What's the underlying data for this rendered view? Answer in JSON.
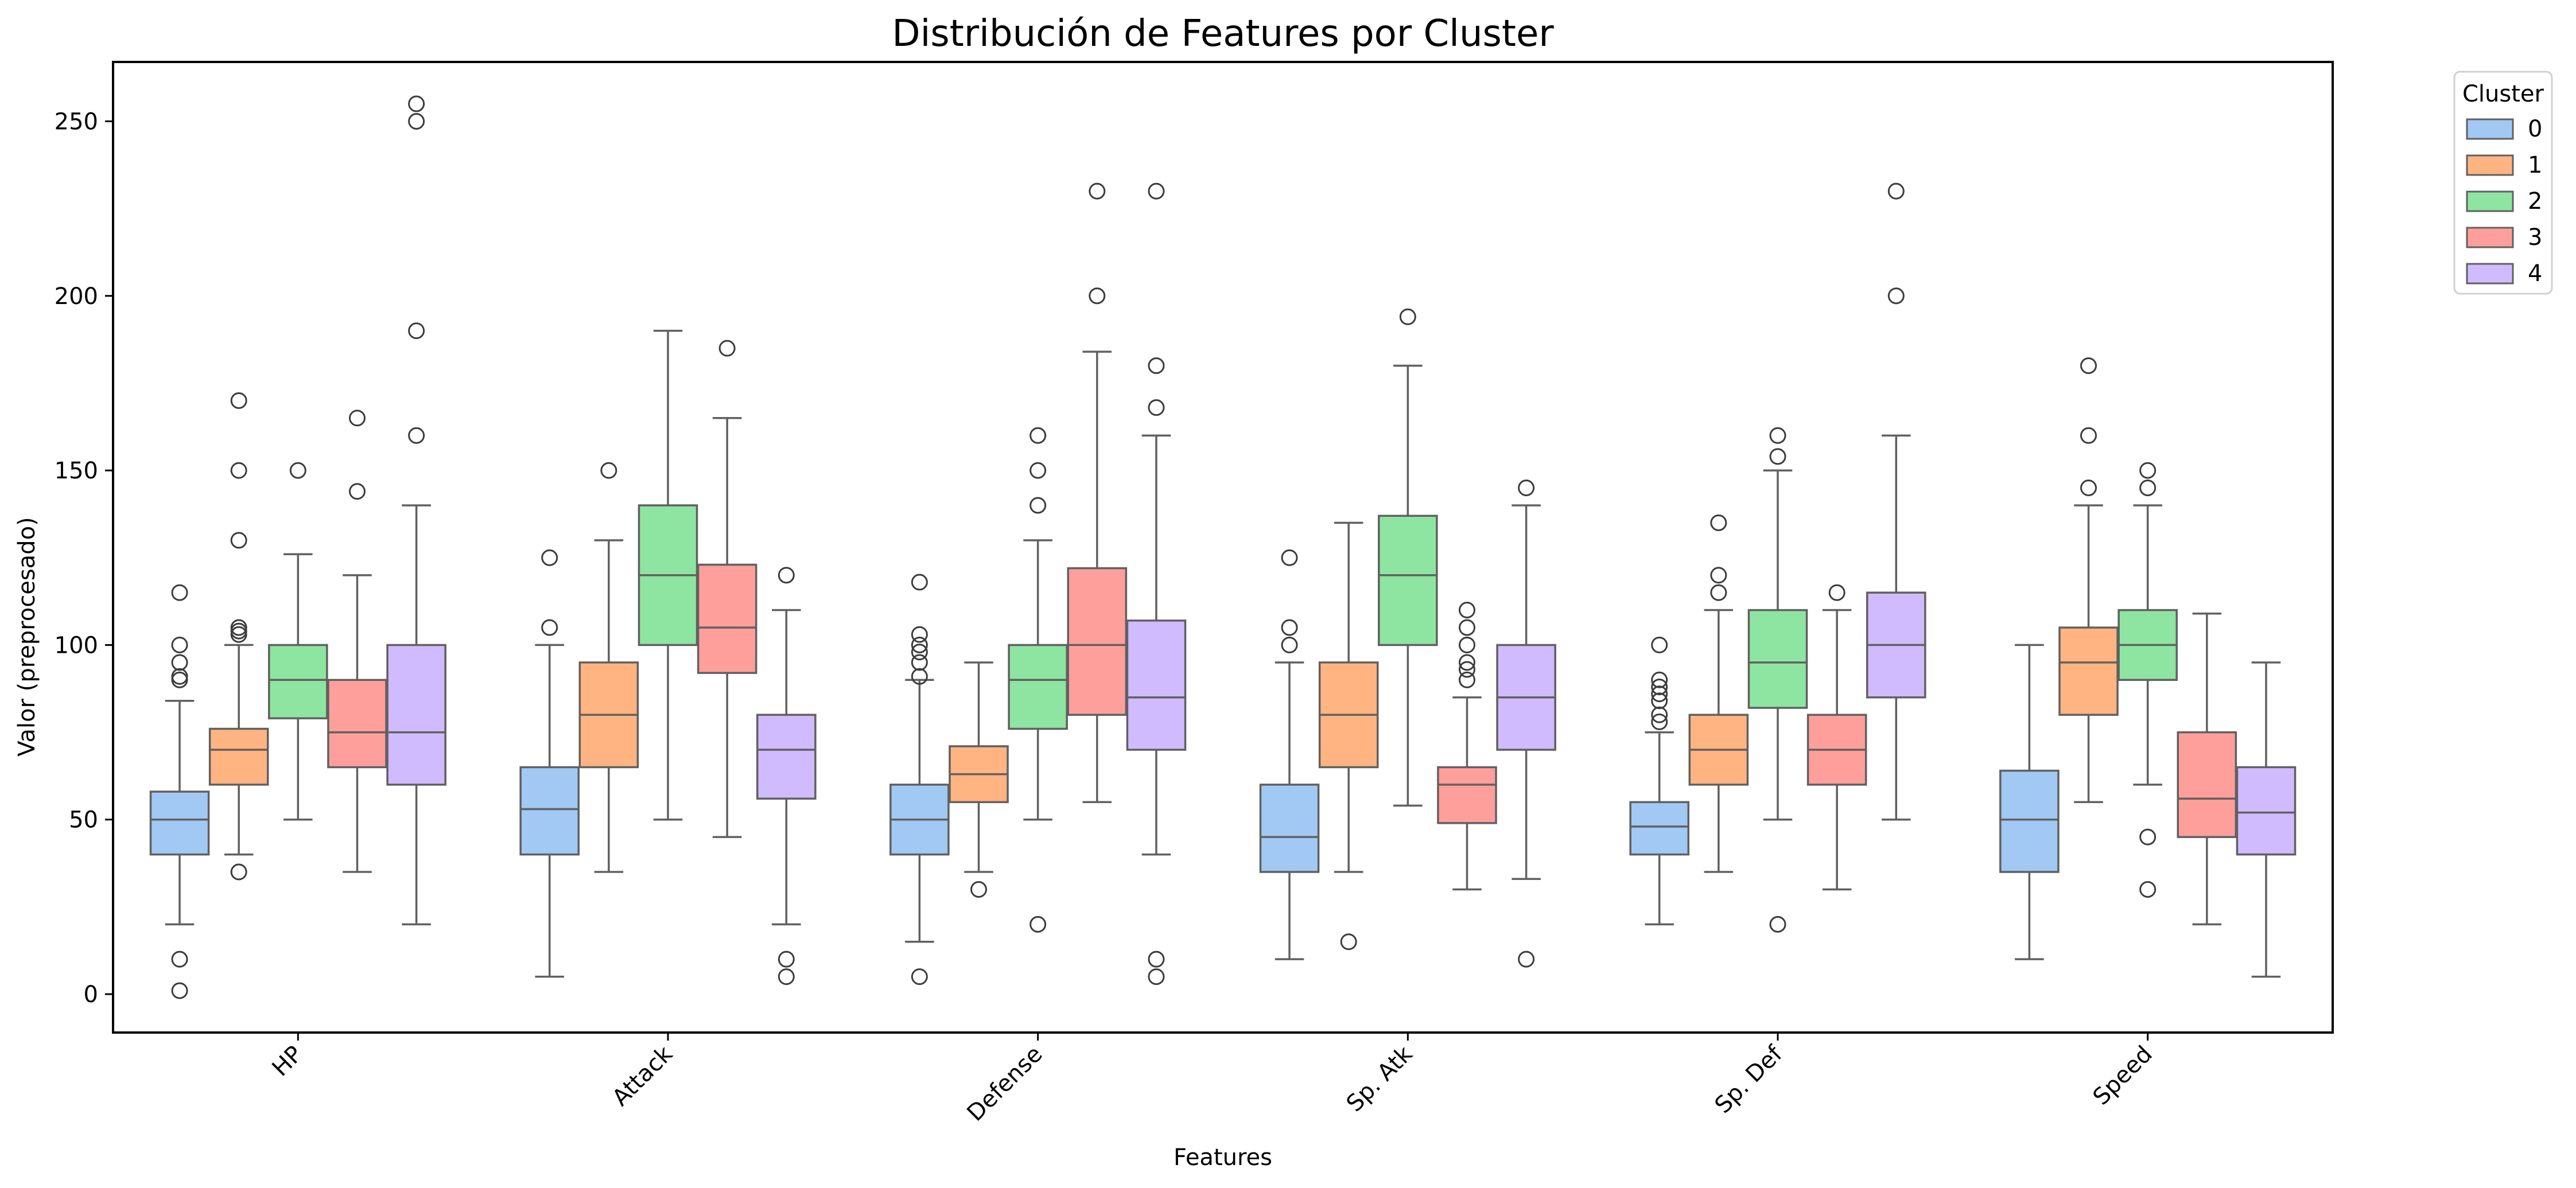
{
  "chart_data": {
    "type": "box",
    "title": "Distribución de Features por Cluster",
    "xlabel": "Features",
    "ylabel": "Valor (preprocesado)",
    "ylim": [
      -11,
      267
    ],
    "yticks": [
      0,
      50,
      100,
      150,
      200,
      250
    ],
    "categories": [
      "HP",
      "Attack",
      "Defense",
      "Sp. Atk",
      "Sp. Def",
      "Speed"
    ],
    "grid": false,
    "legend": {
      "title": "Cluster",
      "position": "outside-top-right"
    },
    "series": [
      {
        "name": "0",
        "color": "#a1c9f4",
        "boxes": [
          {
            "whislo": 20,
            "q1": 40,
            "med": 50,
            "q3": 58,
            "whishi": 84,
            "fliers": [
              1,
              10,
              90,
              91,
              95,
              100,
              115
            ]
          },
          {
            "whislo": 5,
            "q1": 40,
            "med": 53,
            "q3": 65,
            "whishi": 100,
            "fliers": [
              105,
              125
            ]
          },
          {
            "whislo": 15,
            "q1": 40,
            "med": 50,
            "q3": 60,
            "whishi": 90,
            "fliers": [
              5,
              91,
              95,
              98,
              100,
              103,
              118
            ]
          },
          {
            "whislo": 10,
            "q1": 35,
            "med": 45,
            "q3": 60,
            "whishi": 95,
            "fliers": [
              100,
              105,
              125
            ]
          },
          {
            "whislo": 20,
            "q1": 40,
            "med": 48,
            "q3": 55,
            "whishi": 75,
            "fliers": [
              78,
              80,
              84,
              86,
              88,
              90,
              100
            ]
          },
          {
            "whislo": 10,
            "q1": 35,
            "med": 50,
            "q3": 64,
            "whishi": 100,
            "fliers": []
          }
        ]
      },
      {
        "name": "1",
        "color": "#ffb482",
        "boxes": [
          {
            "whislo": 40,
            "q1": 60,
            "med": 70,
            "q3": 76,
            "whishi": 100,
            "fliers": [
              35,
              103,
              104,
              105,
              130,
              150,
              170
            ]
          },
          {
            "whislo": 35,
            "q1": 65,
            "med": 80,
            "q3": 95,
            "whishi": 130,
            "fliers": [
              150
            ]
          },
          {
            "whislo": 35,
            "q1": 55,
            "med": 63,
            "q3": 71,
            "whishi": 95,
            "fliers": [
              30
            ]
          },
          {
            "whislo": 35,
            "q1": 65,
            "med": 80,
            "q3": 95,
            "whishi": 135,
            "fliers": [
              15
            ]
          },
          {
            "whislo": 35,
            "q1": 60,
            "med": 70,
            "q3": 80,
            "whishi": 110,
            "fliers": [
              115,
              120,
              135
            ]
          },
          {
            "whislo": 55,
            "q1": 80,
            "med": 95,
            "q3": 105,
            "whishi": 140,
            "fliers": [
              145,
              160,
              180
            ]
          }
        ]
      },
      {
        "name": "2",
        "color": "#8de5a1",
        "boxes": [
          {
            "whislo": 50,
            "q1": 79,
            "med": 90,
            "q3": 100,
            "whishi": 126,
            "fliers": [
              150
            ]
          },
          {
            "whislo": 50,
            "q1": 100,
            "med": 120,
            "q3": 140,
            "whishi": 190,
            "fliers": []
          },
          {
            "whislo": 50,
            "q1": 76,
            "med": 90,
            "q3": 100,
            "whishi": 130,
            "fliers": [
              20,
              140,
              150,
              160
            ]
          },
          {
            "whislo": 54,
            "q1": 100,
            "med": 120,
            "q3": 137,
            "whishi": 180,
            "fliers": [
              194
            ]
          },
          {
            "whislo": 50,
            "q1": 82,
            "med": 95,
            "q3": 110,
            "whishi": 150,
            "fliers": [
              20,
              154,
              160
            ]
          },
          {
            "whislo": 60,
            "q1": 90,
            "med": 100,
            "q3": 110,
            "whishi": 140,
            "fliers": [
              30,
              45,
              145,
              150
            ]
          }
        ]
      },
      {
        "name": "3",
        "color": "#ff9f9b",
        "boxes": [
          {
            "whislo": 35,
            "q1": 65,
            "med": 75,
            "q3": 90,
            "whishi": 120,
            "fliers": [
              144,
              165
            ]
          },
          {
            "whislo": 45,
            "q1": 92,
            "med": 105,
            "q3": 123,
            "whishi": 165,
            "fliers": [
              185
            ]
          },
          {
            "whislo": 55,
            "q1": 80,
            "med": 100,
            "q3": 122,
            "whishi": 184,
            "fliers": [
              200,
              230
            ]
          },
          {
            "whislo": 30,
            "q1": 49,
            "med": 60,
            "q3": 65,
            "whishi": 85,
            "fliers": [
              90,
              93,
              95,
              100,
              105,
              110
            ]
          },
          {
            "whislo": 30,
            "q1": 60,
            "med": 70,
            "q3": 80,
            "whishi": 110,
            "fliers": [
              115
            ]
          },
          {
            "whislo": 20,
            "q1": 45,
            "med": 56,
            "q3": 75,
            "whishi": 109,
            "fliers": []
          }
        ]
      },
      {
        "name": "4",
        "color": "#d0bbff",
        "boxes": [
          {
            "whislo": 20,
            "q1": 60,
            "med": 75,
            "q3": 100,
            "whishi": 140,
            "fliers": [
              160,
              190,
              250,
              255
            ]
          },
          {
            "whislo": 20,
            "q1": 56,
            "med": 70,
            "q3": 80,
            "whishi": 110,
            "fliers": [
              5,
              10,
              120
            ]
          },
          {
            "whislo": 40,
            "q1": 70,
            "med": 85,
            "q3": 107,
            "whishi": 160,
            "fliers": [
              5,
              10,
              168,
              180,
              230
            ]
          },
          {
            "whislo": 33,
            "q1": 70,
            "med": 85,
            "q3": 100,
            "whishi": 140,
            "fliers": [
              10,
              145
            ]
          },
          {
            "whislo": 50,
            "q1": 85,
            "med": 100,
            "q3": 115,
            "whishi": 160,
            "fliers": [
              200,
              230
            ]
          },
          {
            "whislo": 5,
            "q1": 40,
            "med": 52,
            "q3": 65,
            "whishi": 95,
            "fliers": []
          }
        ]
      }
    ]
  }
}
